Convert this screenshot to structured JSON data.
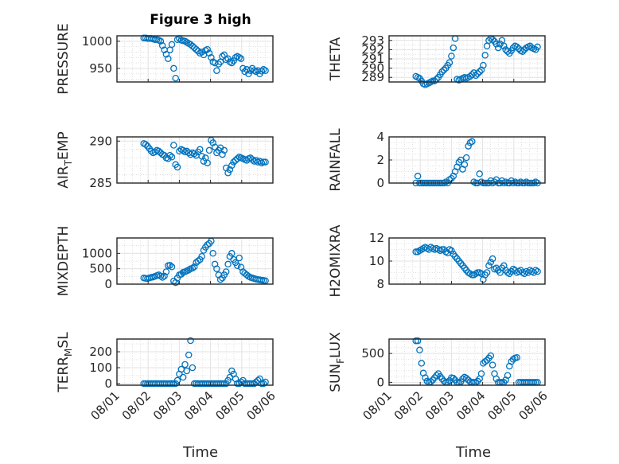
{
  "figure": {
    "title": "Figure 3 high",
    "xlabel": "Time",
    "marker_color": "#0072BD"
  },
  "chart_data": [
    {
      "type": "scatter",
      "ylabel": "PRESSURE",
      "ylabel_sub": "",
      "xlim": [
        0,
        5
      ],
      "ylim": [
        925,
        1010
      ],
      "xticks": [
        "08/01",
        "08/02",
        "08/03",
        "08/04",
        "08/05",
        "08/06"
      ],
      "yticks": [
        950,
        1000
      ],
      "yminor": 10,
      "grid": true,
      "x": [
        0.86,
        0.92,
        0.98,
        1.04,
        1.1,
        1.16,
        1.22,
        1.28,
        1.34,
        1.4,
        1.46,
        1.52,
        1.58,
        1.64,
        1.7,
        1.76,
        1.82,
        1.88,
        1.94,
        2.0,
        2.06,
        2.12,
        2.18,
        2.24,
        2.3,
        2.36,
        2.42,
        2.48,
        2.54,
        2.6,
        2.66,
        2.72,
        2.78,
        2.84,
        2.9,
        2.96,
        3.02,
        3.08,
        3.14,
        3.2,
        3.26,
        3.32,
        3.38,
        3.44,
        3.5,
        3.56,
        3.62,
        3.68,
        3.74,
        3.8,
        3.86,
        3.92,
        3.98,
        4.04,
        4.1,
        4.16,
        4.22,
        4.28,
        4.34,
        4.4,
        4.46,
        4.52,
        4.58,
        4.64,
        4.7,
        4.76
      ],
      "y": [
        1006,
        1006,
        1005,
        1005,
        1005,
        1004,
        1003,
        1003,
        1002,
        1000,
        992,
        984,
        976,
        968,
        984,
        994,
        950,
        932,
        1003,
        1005,
        1002,
        1001,
        1000,
        998,
        996,
        994,
        991,
        988,
        985,
        982,
        978,
        980,
        975,
        983,
        985,
        978,
        970,
        962,
        960,
        946,
        958,
        962,
        972,
        975,
        966,
        968,
        962,
        960,
        964,
        970,
        972,
        970,
        968,
        950,
        944,
        948,
        940,
        946,
        950,
        946,
        944,
        946,
        940,
        945,
        948,
        946
      ]
    },
    {
      "type": "scatter",
      "ylabel": "THETA",
      "ylabel_sub": "",
      "xlim": [
        0,
        5
      ],
      "ylim": [
        288.5,
        293.5
      ],
      "xticks": [
        "08/01",
        "08/02",
        "08/03",
        "08/04",
        "08/05",
        "08/06"
      ],
      "yticks": [
        289,
        290,
        291,
        292,
        293
      ],
      "yminor": 0.5,
      "grid": true,
      "x": [
        0.86,
        0.92,
        0.98,
        1.04,
        1.1,
        1.16,
        1.22,
        1.28,
        1.34,
        1.4,
        1.46,
        1.52,
        1.58,
        1.64,
        1.7,
        1.76,
        1.82,
        1.88,
        1.94,
        2.0,
        2.06,
        2.12,
        2.18,
        2.24,
        2.3,
        2.36,
        2.42,
        2.48,
        2.54,
        2.6,
        2.66,
        2.72,
        2.78,
        2.84,
        2.9,
        2.96,
        3.02,
        3.08,
        3.14,
        3.2,
        3.26,
        3.32,
        3.38,
        3.44,
        3.5,
        3.56,
        3.62,
        3.68,
        3.74,
        3.8,
        3.86,
        3.92,
        3.98,
        4.04,
        4.1,
        4.16,
        4.22,
        4.28,
        4.34,
        4.4,
        4.46,
        4.52,
        4.58,
        4.64,
        4.7,
        4.76
      ],
      "y": [
        289.1,
        289.0,
        288.9,
        288.6,
        288.3,
        288.2,
        288.3,
        288.4,
        288.5,
        288.6,
        288.6,
        288.8,
        289.0,
        289.3,
        289.6,
        289.8,
        290.0,
        290.3,
        290.6,
        291.3,
        292.2,
        293.2,
        288.8,
        288.7,
        288.8,
        288.9,
        289.0,
        288.9,
        289.0,
        289.1,
        289.3,
        289.5,
        289.2,
        289.4,
        289.6,
        289.8,
        290.3,
        291.4,
        292.4,
        293.0,
        293.2,
        293.1,
        292.9,
        292.6,
        292.2,
        292.6,
        293.0,
        292.4,
        292.0,
        291.8,
        291.6,
        291.9,
        292.2,
        292.4,
        292.3,
        292.1,
        291.9,
        291.8,
        292.0,
        292.2,
        292.3,
        292.4,
        292.2,
        292.1,
        292.0,
        292.3
      ]
    },
    {
      "type": "scatter",
      "ylabel": "AIR",
      "ylabel_sub": "T",
      "ylabel_tail": "EMP",
      "xlim": [
        0,
        5
      ],
      "ylim": [
        285,
        290.5
      ],
      "xticks": [
        "08/01",
        "08/02",
        "08/03",
        "08/04",
        "08/05",
        "08/06"
      ],
      "yticks": [
        285,
        290
      ],
      "yminor": 1,
      "grid": true,
      "x": [
        0.86,
        0.92,
        0.98,
        1.04,
        1.1,
        1.16,
        1.22,
        1.28,
        1.34,
        1.4,
        1.46,
        1.52,
        1.58,
        1.64,
        1.7,
        1.76,
        1.82,
        1.88,
        1.94,
        2.0,
        2.06,
        2.12,
        2.18,
        2.24,
        2.3,
        2.36,
        2.42,
        2.48,
        2.54,
        2.6,
        2.66,
        2.72,
        2.78,
        2.84,
        2.9,
        2.96,
        3.02,
        3.08,
        3.14,
        3.2,
        3.26,
        3.32,
        3.38,
        3.44,
        3.5,
        3.56,
        3.62,
        3.68,
        3.74,
        3.8,
        3.86,
        3.92,
        3.98,
        4.04,
        4.1,
        4.16,
        4.22,
        4.28,
        4.34,
        4.4,
        4.46,
        4.52,
        4.58,
        4.64,
        4.7,
        4.76
      ],
      "y": [
        289.7,
        289.6,
        289.4,
        289.1,
        288.8,
        288.6,
        288.7,
        288.9,
        288.8,
        288.6,
        288.4,
        288.3,
        288.0,
        287.9,
        288.3,
        288.1,
        289.5,
        287.2,
        286.9,
        288.8,
        289.0,
        288.9,
        288.7,
        288.8,
        288.6,
        288.4,
        288.6,
        288.5,
        288.3,
        288.7,
        289.0,
        288.2,
        287.6,
        288.0,
        287.4,
        288.9,
        290.1,
        289.8,
        289.3,
        288.6,
        288.9,
        289.2,
        288.4,
        288.9,
        286.8,
        286.2,
        286.6,
        287.1,
        287.5,
        287.7,
        287.9,
        288.1,
        288.0,
        287.9,
        287.8,
        287.7,
        287.9,
        288.0,
        287.8,
        287.6,
        287.7,
        287.5,
        287.6,
        287.4,
        287.5,
        287.5
      ]
    },
    {
      "type": "scatter",
      "ylabel": "RAINFALL",
      "ylabel_sub": "",
      "xlim": [
        0,
        5
      ],
      "ylim": [
        0,
        4
      ],
      "xticks": [
        "08/01",
        "08/02",
        "08/03",
        "08/04",
        "08/05",
        "08/06"
      ],
      "yticks": [
        0,
        2,
        4
      ],
      "yminor": 0.5,
      "grid": true,
      "x": [
        0.86,
        0.92,
        0.98,
        1.04,
        1.1,
        1.16,
        1.22,
        1.28,
        1.34,
        1.4,
        1.46,
        1.52,
        1.58,
        1.64,
        1.7,
        1.76,
        1.82,
        1.88,
        1.94,
        2.0,
        2.06,
        2.12,
        2.18,
        2.24,
        2.3,
        2.36,
        2.42,
        2.48,
        2.54,
        2.6,
        2.66,
        2.72,
        2.78,
        2.84,
        2.9,
        2.96,
        3.02,
        3.08,
        3.14,
        3.2,
        3.26,
        3.32,
        3.38,
        3.44,
        3.5,
        3.56,
        3.62,
        3.68,
        3.74,
        3.8,
        3.86,
        3.92,
        3.98,
        4.04,
        4.1,
        4.16,
        4.22,
        4.28,
        4.34,
        4.4,
        4.46,
        4.52,
        4.58,
        4.64,
        4.7,
        4.76
      ],
      "y": [
        0,
        0.6,
        0,
        0,
        0,
        0,
        0,
        0,
        0,
        0,
        0,
        0,
        0,
        0,
        0,
        0,
        0.1,
        0,
        0.3,
        0.4,
        0.6,
        1.0,
        1.4,
        1.8,
        2.0,
        1.2,
        1.6,
        2.2,
        3.2,
        3.5,
        3.6,
        0.1,
        0,
        0,
        0.8,
        0.1,
        0,
        0,
        0,
        0,
        0.2,
        0,
        0.1,
        0.3,
        0,
        0,
        0.2,
        0,
        0.1,
        0,
        0,
        0.2,
        0,
        0.1,
        0,
        0,
        0.1,
        0,
        0,
        0.1,
        0,
        0,
        0,
        0,
        0.1,
        0
      ]
    },
    {
      "type": "scatter",
      "ylabel": "MIXDEPTH",
      "ylabel_sub": "",
      "xlim": [
        0,
        5
      ],
      "ylim": [
        0,
        1500
      ],
      "xticks": [
        "08/01",
        "08/02",
        "08/03",
        "08/04",
        "08/05",
        "08/06"
      ],
      "yticks": [
        0,
        500,
        1000
      ],
      "yminor": 250,
      "grid": true,
      "x": [
        0.86,
        0.92,
        0.98,
        1.04,
        1.1,
        1.16,
        1.22,
        1.28,
        1.34,
        1.4,
        1.46,
        1.52,
        1.58,
        1.64,
        1.7,
        1.76,
        1.82,
        1.88,
        1.94,
        2.0,
        2.06,
        2.12,
        2.18,
        2.24,
        2.3,
        2.36,
        2.42,
        2.48,
        2.54,
        2.6,
        2.66,
        2.72,
        2.78,
        2.84,
        2.9,
        2.96,
        3.02,
        3.08,
        3.14,
        3.2,
        3.26,
        3.32,
        3.38,
        3.44,
        3.5,
        3.56,
        3.62,
        3.68,
        3.74,
        3.8,
        3.86,
        3.92,
        3.98,
        4.04,
        4.1,
        4.16,
        4.22,
        4.28,
        4.34,
        4.4,
        4.46,
        4.52,
        4.58,
        4.64,
        4.7,
        4.76
      ],
      "y": [
        200,
        190,
        180,
        200,
        220,
        230,
        250,
        280,
        300,
        260,
        220,
        260,
        400,
        600,
        610,
        560,
        100,
        50,
        200,
        300,
        320,
        380,
        400,
        430,
        460,
        500,
        520,
        560,
        700,
        750,
        800,
        900,
        1100,
        1200,
        1280,
        1320,
        1400,
        1000,
        650,
        500,
        300,
        150,
        200,
        300,
        400,
        650,
        900,
        1000,
        800,
        700,
        600,
        850,
        550,
        400,
        350,
        300,
        250,
        220,
        200,
        180,
        160,
        150,
        140,
        130,
        120,
        110
      ]
    },
    {
      "type": "scatter",
      "ylabel": "H2OMIXRA",
      "ylabel_sub": "",
      "xlim": [
        0,
        5
      ],
      "ylim": [
        8,
        12
      ],
      "xticks": [
        "08/01",
        "08/02",
        "08/03",
        "08/04",
        "08/05",
        "08/06"
      ],
      "yticks": [
        8,
        10,
        12
      ],
      "yminor": 0.5,
      "grid": true,
      "x": [
        0.86,
        0.92,
        0.98,
        1.04,
        1.1,
        1.16,
        1.22,
        1.28,
        1.34,
        1.4,
        1.46,
        1.52,
        1.58,
        1.64,
        1.7,
        1.76,
        1.82,
        1.88,
        1.94,
        2.0,
        2.06,
        2.12,
        2.18,
        2.24,
        2.3,
        2.36,
        2.42,
        2.48,
        2.54,
        2.6,
        2.66,
        2.72,
        2.78,
        2.84,
        2.9,
        2.96,
        3.02,
        3.08,
        3.14,
        3.2,
        3.26,
        3.32,
        3.38,
        3.44,
        3.5,
        3.56,
        3.62,
        3.68,
        3.74,
        3.8,
        3.86,
        3.92,
        3.98,
        4.04,
        4.1,
        4.16,
        4.22,
        4.28,
        4.34,
        4.4,
        4.46,
        4.52,
        4.58,
        4.64,
        4.7,
        4.76
      ],
      "y": [
        10.8,
        10.8,
        10.9,
        11.0,
        11.1,
        11.2,
        11.1,
        11.0,
        11.2,
        11.1,
        11.0,
        11.1,
        11.0,
        10.9,
        11.0,
        11.0,
        10.8,
        10.7,
        11.0,
        10.9,
        10.6,
        10.4,
        10.2,
        10.0,
        9.8,
        9.6,
        9.4,
        9.2,
        9.0,
        8.9,
        8.8,
        8.8,
        8.9,
        9.0,
        9.0,
        8.9,
        8.4,
        8.8,
        9.0,
        9.6,
        9.9,
        10.2,
        9.3,
        9.4,
        9.2,
        9.0,
        9.4,
        9.6,
        9.2,
        9.0,
        8.9,
        9.1,
        9.3,
        9.2,
        9.0,
        9.1,
        9.2,
        9.0,
        8.9,
        9.1,
        9.0,
        9.2,
        9.1,
        9.0,
        9.2,
        9.1
      ]
    },
    {
      "type": "scatter",
      "ylabel": "TERR",
      "ylabel_sub": "M",
      "ylabel_tail": "SL",
      "xlim": [
        0,
        5
      ],
      "ylim": [
        -10,
        280
      ],
      "xticks": [
        "08/01",
        "08/02",
        "08/03",
        "08/04",
        "08/05",
        "08/06"
      ],
      "yticks": [
        0,
        100,
        200
      ],
      "yminor": 50,
      "grid": true,
      "x": [
        0.86,
        0.92,
        0.98,
        1.04,
        1.1,
        1.16,
        1.22,
        1.28,
        1.34,
        1.4,
        1.46,
        1.52,
        1.58,
        1.64,
        1.7,
        1.76,
        1.82,
        1.88,
        1.94,
        2.0,
        2.06,
        2.12,
        2.18,
        2.24,
        2.3,
        2.36,
        2.42,
        2.48,
        2.54,
        2.6,
        2.66,
        2.72,
        2.78,
        2.84,
        2.9,
        2.96,
        3.02,
        3.08,
        3.14,
        3.2,
        3.26,
        3.32,
        3.38,
        3.44,
        3.5,
        3.56,
        3.62,
        3.68,
        3.74,
        3.8,
        3.86,
        3.92,
        3.98,
        4.04,
        4.1,
        4.16,
        4.22,
        4.28,
        4.34,
        4.4,
        4.46,
        4.52,
        4.58,
        4.64,
        4.7,
        4.76
      ],
      "y": [
        0,
        0,
        0,
        0,
        0,
        0,
        0,
        0,
        0,
        0,
        0,
        0,
        0,
        0,
        0,
        0,
        0,
        0,
        20,
        60,
        90,
        40,
        120,
        80,
        180,
        270,
        100,
        0,
        0,
        0,
        0,
        0,
        0,
        0,
        0,
        0,
        0,
        0,
        0,
        0,
        0,
        0,
        0,
        0,
        0,
        20,
        40,
        80,
        60,
        30,
        0,
        0,
        10,
        20,
        0,
        0,
        0,
        0,
        0,
        0,
        10,
        20,
        30,
        0,
        0,
        10
      ]
    },
    {
      "type": "scatter",
      "ylabel": "SUN",
      "ylabel_sub": "F",
      "ylabel_tail": "LUX",
      "xlim": [
        0,
        5
      ],
      "ylim": [
        -50,
        750
      ],
      "xticks": [
        "08/01",
        "08/02",
        "08/03",
        "08/04",
        "08/05",
        "08/06"
      ],
      "yticks": [
        0,
        500
      ],
      "yminor": 100,
      "grid": true,
      "x": [
        0.86,
        0.92,
        0.98,
        1.04,
        1.1,
        1.16,
        1.22,
        1.28,
        1.34,
        1.4,
        1.46,
        1.52,
        1.58,
        1.64,
        1.7,
        1.76,
        1.82,
        1.88,
        1.94,
        2.0,
        2.06,
        2.12,
        2.18,
        2.24,
        2.3,
        2.36,
        2.42,
        2.48,
        2.54,
        2.6,
        2.66,
        2.72,
        2.78,
        2.84,
        2.9,
        2.96,
        3.02,
        3.08,
        3.14,
        3.2,
        3.26,
        3.32,
        3.38,
        3.44,
        3.5,
        3.56,
        3.62,
        3.68,
        3.74,
        3.8,
        3.86,
        3.92,
        3.98,
        4.04,
        4.1,
        4.16,
        4.22,
        4.28,
        4.34,
        4.4,
        4.46,
        4.52,
        4.58,
        4.64,
        4.7,
        4.76
      ],
      "y": [
        720,
        720,
        560,
        330,
        160,
        80,
        20,
        0,
        10,
        40,
        80,
        120,
        150,
        100,
        60,
        20,
        0,
        0,
        30,
        80,
        70,
        40,
        0,
        0,
        10,
        60,
        90,
        70,
        40,
        10,
        0,
        0,
        0,
        20,
        60,
        150,
        330,
        360,
        380,
        420,
        460,
        300,
        150,
        60,
        0,
        0,
        0,
        0,
        40,
        120,
        280,
        360,
        400,
        420,
        430,
        0,
        0,
        0,
        0,
        0,
        0,
        0,
        0,
        0,
        0,
        0
      ]
    }
  ]
}
